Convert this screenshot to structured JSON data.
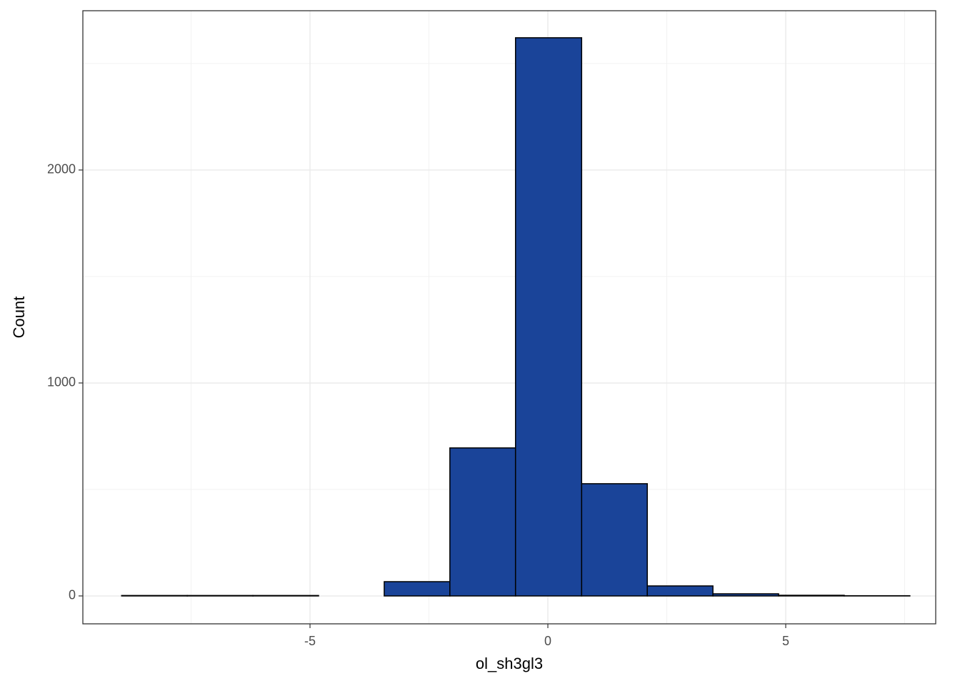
{
  "chart_data": {
    "type": "histogram",
    "x_label": "ol_sh3gl3",
    "y_label": "Count",
    "bins": [
      -8.96,
      -7.58,
      -6.2,
      -4.82,
      -3.44,
      -2.06,
      -0.68,
      0.71,
      2.09,
      3.47,
      4.85,
      6.23,
      7.61
    ],
    "values": [
      2,
      2,
      2,
      0,
      67,
      695,
      2621,
      527,
      47,
      10,
      3,
      1
    ],
    "color": "#1a4499",
    "edge_color": "#000000",
    "xlim": [
      -9.775,
      8.153
    ],
    "ylim": [
      -131,
      2748
    ],
    "xticks": [
      -5,
      0,
      5
    ],
    "yticks": [
      0,
      1000,
      2000
    ],
    "minor_xticks": [
      -7.5,
      -2.5,
      2.5,
      7.5
    ],
    "minor_yticks": [
      500,
      1500,
      2500
    ],
    "grid": true
  }
}
